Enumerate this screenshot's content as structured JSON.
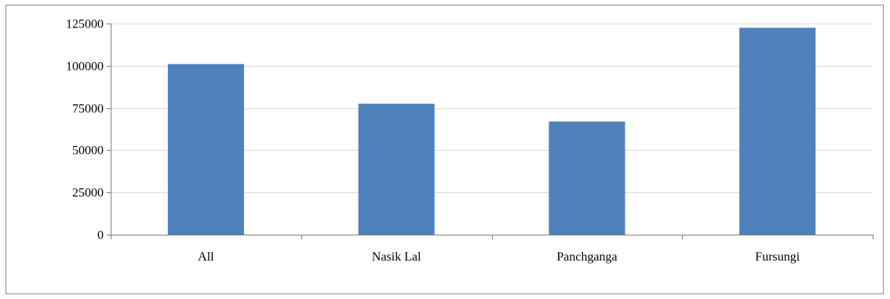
{
  "chart_data": {
    "type": "bar",
    "categories": [
      "All",
      "Nasik Lal",
      "Panchganga",
      "Fursungi"
    ],
    "values": [
      101000,
      77500,
      67000,
      122500
    ],
    "title": "",
    "xlabel": "",
    "ylabel": "",
    "ylim": [
      0,
      125000
    ],
    "yticks": [
      0,
      25000,
      50000,
      75000,
      100000,
      125000
    ],
    "ytick_labels": [
      "0",
      "25000",
      "50000",
      "75000",
      "100000",
      "125000"
    ],
    "grid": true,
    "legend": "none",
    "colors": {
      "bar": "#4F81BD",
      "grid": "#d9d9d9",
      "axis": "#7f7f7f"
    }
  }
}
